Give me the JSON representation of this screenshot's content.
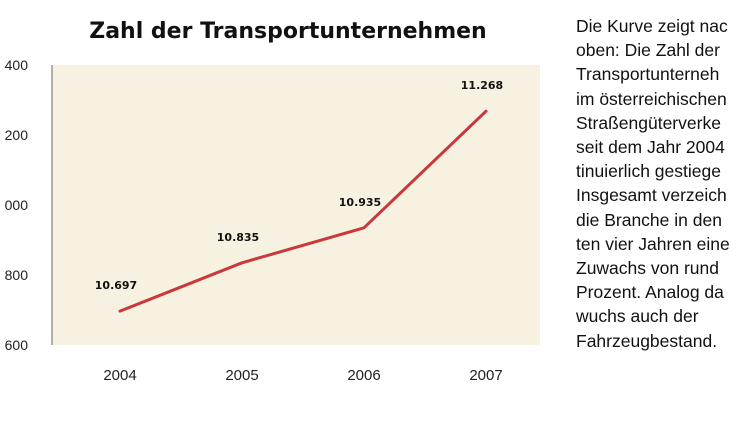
{
  "colors": {
    "plot_background": "#f6f1e1",
    "line": "#c9383a"
  },
  "chart_data": {
    "type": "line",
    "title": "Zahl der Transportunternehmen",
    "categories": [
      "2004",
      "2005",
      "2006",
      "2007"
    ],
    "values": [
      10697,
      10835,
      10935,
      11268
    ],
    "data_labels": [
      "10.697",
      "10.835",
      "10.935",
      "11.268"
    ],
    "y_tick_labels": [
      "400",
      "200",
      "000",
      "800",
      "600"
    ],
    "ylim": [
      10600,
      11400
    ],
    "grid": false,
    "legend": "none"
  },
  "side_text": "Die Kurve zeigt nac\noben: Die Zahl der\nTransportunterneh\nim österreichischen\nStraßengüterverke\nseit dem Jahr 2004\ntinuierlich gestiege\nInsgesamt verzeich\ndie Branche in den\nten vier Jahren eine\nZuwachs von rund\nProzent. Analog da\nwuchs auch der\nFahrzeugbestand."
}
